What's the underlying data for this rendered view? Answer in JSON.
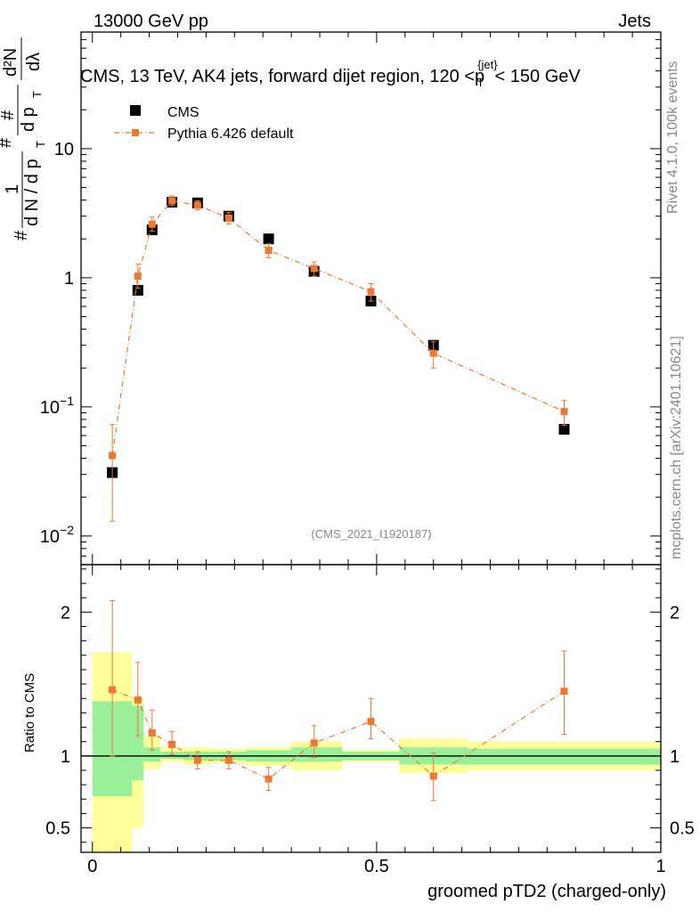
{
  "header": {
    "energy_label": "13000 GeV pp",
    "category_label": "Jets"
  },
  "chart_data": [
    {
      "type": "scatter",
      "panel": "main",
      "title": "CMS, 13 TeV, AK4 jets, forward dijet region, 120 < p_T^{jet} < 150 GeV",
      "title_parts": {
        "prefix": "CMS, 13 TeV, AK4 jets, forward dijet region, 120 <p",
        "sup": "{jet}",
        "sub": "T",
        "suffix": "< 150 GeV"
      },
      "ylabel_parts": {
        "hash": "#",
        "one": "1",
        "denom": "d N / d p",
        "numer": "d²N",
        "mid": "d p",
        "t": "T",
        "lambda": "dλ"
      },
      "yscale": "log",
      "ylim": [
        0.006,
        80
      ],
      "xlim": [
        -0.02,
        1.0
      ],
      "y_ticks": [
        {
          "value": 0.01,
          "label_base": "10",
          "label_exp": "−2"
        },
        {
          "value": 0.1,
          "label_base": "10",
          "label_exp": "−1"
        },
        {
          "value": 1,
          "label_base": "1",
          "label_exp": ""
        },
        {
          "value": 10,
          "label_base": "10",
          "label_exp": ""
        }
      ],
      "watermark": "(CMS_2021_I1920187)",
      "legend": {
        "position": "top-left",
        "entries": [
          {
            "name": "CMS",
            "color": "#000000"
          },
          {
            "name": "Pythia 6.426 default",
            "color": "#ee7733"
          }
        ]
      },
      "series": [
        {
          "name": "CMS",
          "color": "#000000",
          "x": [
            0.035,
            0.08,
            0.105,
            0.14,
            0.185,
            0.24,
            0.31,
            0.39,
            0.49,
            0.6,
            0.83
          ],
          "y": [
            0.031,
            0.8,
            2.35,
            3.85,
            3.8,
            3.0,
            2.0,
            1.12,
            0.66,
            0.3,
            0.067
          ],
          "xerr": [
            0.035,
            0.008,
            0.015,
            0.02,
            0.025,
            0.03,
            0.04,
            0.045,
            0.055,
            0.065,
            0.165
          ]
        },
        {
          "name": "Pythia 6.426 default",
          "color": "#ee7733",
          "x": [
            0.035,
            0.08,
            0.105,
            0.14,
            0.185,
            0.24,
            0.31,
            0.39,
            0.49,
            0.6,
            0.83
          ],
          "y": [
            0.042,
            1.03,
            2.6,
            3.95,
            3.65,
            2.9,
            1.63,
            1.18,
            0.78,
            0.26,
            0.092
          ],
          "yerr_low": [
            0.029,
            0.2,
            0.3,
            0.3,
            0.3,
            0.3,
            0.2,
            0.15,
            0.12,
            0.06,
            0.02
          ],
          "yerr_high": [
            0.031,
            0.25,
            0.35,
            0.35,
            0.3,
            0.3,
            0.2,
            0.15,
            0.12,
            0.06,
            0.02
          ]
        }
      ]
    },
    {
      "type": "scatter",
      "panel": "ratio",
      "ylabel": "Ratio to CMS",
      "xlabel": "groomed pTD2 (charged-only)",
      "ylim": [
        0.33,
        2.33
      ],
      "xlim": [
        -0.02,
        1.0
      ],
      "y_ticks": [
        {
          "value": 0.5,
          "label": "0.5"
        },
        {
          "value": 1,
          "label": "1"
        },
        {
          "value": 2,
          "label": "2"
        }
      ],
      "x_ticks": [
        {
          "value": 0,
          "label": "0"
        },
        {
          "value": 0.5,
          "label": "0.5"
        },
        {
          "value": 1,
          "label": "1"
        }
      ],
      "bands": [
        {
          "x0": 0.0,
          "x1": 0.07,
          "stat_low": 0.72,
          "stat_high": 1.38,
          "tot_low": 0.33,
          "tot_high": 1.72
        },
        {
          "x0": 0.07,
          "x1": 0.09,
          "stat_low": 0.83,
          "stat_high": 1.35,
          "tot_low": 0.5,
          "tot_high": 1.4
        },
        {
          "x0": 0.09,
          "x1": 0.12,
          "stat_low": 0.96,
          "stat_high": 1.06,
          "tot_low": 0.91,
          "tot_high": 1.14
        },
        {
          "x0": 0.12,
          "x1": 0.16,
          "stat_low": 0.98,
          "stat_high": 1.03,
          "tot_low": 0.96,
          "tot_high": 1.06
        },
        {
          "x0": 0.16,
          "x1": 0.21,
          "stat_low": 0.97,
          "stat_high": 1.03,
          "tot_low": 0.94,
          "tot_high": 1.06
        },
        {
          "x0": 0.21,
          "x1": 0.27,
          "stat_low": 0.97,
          "stat_high": 1.03,
          "tot_low": 0.95,
          "tot_high": 1.05
        },
        {
          "x0": 0.27,
          "x1": 0.35,
          "stat_low": 0.96,
          "stat_high": 1.04,
          "tot_low": 0.93,
          "tot_high": 1.06
        },
        {
          "x0": 0.35,
          "x1": 0.44,
          "stat_low": 0.96,
          "stat_high": 1.06,
          "tot_low": 0.9,
          "tot_high": 1.1
        },
        {
          "x0": 0.44,
          "x1": 0.54,
          "stat_low": 0.97,
          "stat_high": 1.03,
          "tot_low": 0.96,
          "tot_high": 1.04
        },
        {
          "x0": 0.54,
          "x1": 0.66,
          "stat_low": 0.94,
          "stat_high": 1.06,
          "tot_low": 0.88,
          "tot_high": 1.12
        },
        {
          "x0": 0.66,
          "x1": 1.0,
          "stat_low": 0.94,
          "stat_high": 1.05,
          "tot_low": 0.9,
          "tot_high": 1.1
        }
      ],
      "band_colors": {
        "stat": "#99f099",
        "total": "#ffff99"
      },
      "series": [
        {
          "name": "Pythia 6.426 default",
          "color": "#ee7733",
          "x": [
            0.035,
            0.08,
            0.105,
            0.14,
            0.185,
            0.24,
            0.31,
            0.39,
            0.49,
            0.6,
            0.83
          ],
          "y": [
            1.46,
            1.39,
            1.16,
            1.08,
            0.97,
            0.97,
            0.84,
            1.09,
            1.24,
            0.86,
            1.45
          ],
          "yerr_low": [
            0.46,
            0.25,
            0.12,
            0.07,
            0.06,
            0.06,
            0.08,
            0.1,
            0.12,
            0.17,
            0.3
          ],
          "yerr_high": [
            0.62,
            0.26,
            0.16,
            0.09,
            0.06,
            0.06,
            0.08,
            0.12,
            0.16,
            0.16,
            0.28
          ]
        }
      ]
    }
  ],
  "side_labels": {
    "rivet": "Rivet 4.1.0,  100k events",
    "mcplots": "mcplots.cern.ch [arXiv:2401.10621]"
  }
}
